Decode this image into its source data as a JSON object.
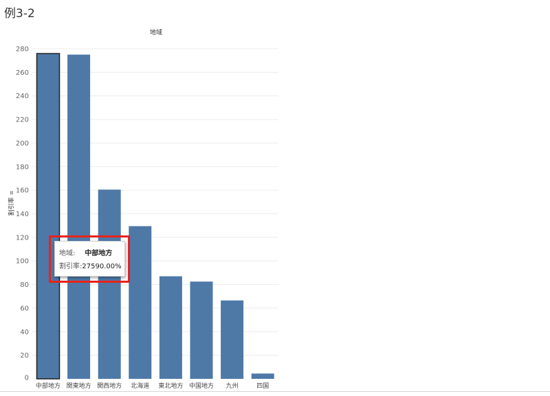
{
  "sheet": {
    "title": "例3-2"
  },
  "chart_data": {
    "type": "bar",
    "column_header": "地域",
    "ylabel": "割引率",
    "categories": [
      "中部地方",
      "関東地方",
      "関西地方",
      "北海道",
      "東北地方",
      "中国地方",
      "九州",
      "四国"
    ],
    "values": [
      275.9,
      275,
      160.5,
      129.5,
      87,
      82.5,
      66.5,
      4.5
    ],
    "ylim": [
      0,
      280
    ],
    "yticks": [
      0,
      20,
      40,
      60,
      80,
      100,
      120,
      140,
      160,
      180,
      200,
      220,
      240,
      260,
      280
    ],
    "selected_index": 0,
    "bar_color": "#4e79a7",
    "grid": true
  },
  "tooltip": {
    "region_key": "地域:",
    "region_value": "中部地方",
    "rate_key": "割引率:",
    "rate_value": "27590.00%"
  },
  "annotation": {
    "highlight_color": "#e8231a"
  }
}
